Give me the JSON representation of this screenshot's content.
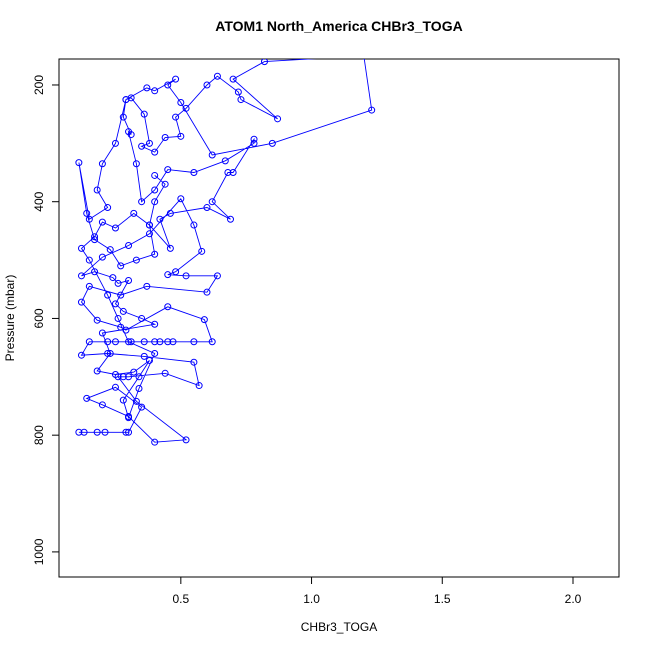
{
  "chart_data": {
    "type": "line",
    "title": "ATOM1 North_America CHBr3_TOGA",
    "x_label": "CHBr3_TOGA",
    "y_label": "Pressure (mbar)",
    "color": "#0000ff",
    "markers": "open-circle",
    "xlim": [
      0.034,
      2.176
    ],
    "ylim": [
      1043,
      155.5
    ],
    "y_inverted": true,
    "xticks": [
      0.5,
      {
        "value": 1,
        "label": "1.0"
      },
      1.5,
      {
        "value": 2,
        "label": "2.0"
      }
    ],
    "yticks": [
      200,
      400,
      600,
      800,
      1000
    ],
    "x": [
      0.11,
      0.13,
      0.18,
      0.21,
      0.29,
      0.3,
      0.35,
      0.25,
      0.14,
      0.2,
      0.3,
      0.4,
      0.52,
      0.33,
      0.26,
      0.28,
      0.3,
      0.44,
      0.57,
      0.55,
      0.36,
      0.22,
      0.12,
      0.15,
      0.22,
      0.25,
      0.31,
      0.36,
      0.4,
      0.42,
      0.45,
      0.47,
      0.55,
      0.62,
      0.59,
      0.45,
      0.29,
      0.27,
      0.18,
      0.12,
      0.15,
      0.27,
      0.37,
      0.6,
      0.64,
      0.52,
      0.45,
      0.48,
      0.58,
      0.55,
      0.5,
      0.38,
      0.3,
      0.2,
      0.12,
      0.17,
      0.24,
      0.26,
      0.3,
      0.25,
      0.28,
      0.35,
      0.4,
      0.2,
      0.23,
      0.18,
      0.25,
      0.32,
      0.38,
      0.34,
      0.28,
      0.3,
      0.34,
      0.4,
      0.3,
      0.26,
      0.22,
      0.15,
      0.12,
      0.17,
      0.2,
      0.25,
      0.32,
      0.38,
      0.46,
      0.42,
      0.46,
      0.6,
      0.69,
      0.62,
      0.68,
      0.7,
      0.78,
      0.78,
      0.67,
      0.55,
      0.45,
      0.4,
      0.35,
      0.33,
      0.3,
      0.31,
      0.28,
      0.29,
      0.31,
      0.36,
      0.38,
      0.35,
      0.4,
      0.44,
      0.5,
      0.48,
      0.52,
      0.6,
      0.64,
      0.72,
      0.73,
      0.87,
      0.7,
      0.82,
      1.2,
      1.23,
      0.85,
      0.62,
      0.5,
      0.45,
      0.48,
      0.4,
      0.37,
      0.29,
      0.25,
      0.2,
      0.18,
      0.22,
      0.15,
      0.11,
      0.14,
      0.17,
      0.23,
      0.27,
      0.33,
      0.4,
      0.38,
      0.4,
      0.44,
      0.4
    ],
    "values": [
      795,
      795,
      795,
      795,
      795,
      795,
      752,
      718,
      737,
      748,
      768,
      812,
      808,
      742,
      700,
      700,
      700,
      694,
      715,
      675,
      665,
      660,
      663,
      640,
      640,
      640,
      640,
      640,
      640,
      640,
      640,
      640,
      640,
      640,
      602,
      580,
      620,
      615,
      603,
      572,
      545,
      560,
      545,
      555,
      527,
      527,
      525,
      520,
      485,
      440,
      395,
      455,
      475,
      495,
      527,
      520,
      530,
      540,
      535,
      575,
      588,
      600,
      610,
      625,
      660,
      690,
      696,
      692,
      672,
      700,
      740,
      770,
      720,
      660,
      640,
      600,
      560,
      500,
      480,
      460,
      435,
      445,
      420,
      440,
      480,
      430,
      420,
      410,
      430,
      400,
      350,
      350,
      293,
      300,
      330,
      350,
      345,
      380,
      400,
      335,
      280,
      285,
      255,
      225,
      222,
      250,
      300,
      305,
      315,
      290,
      288,
      255,
      240,
      200,
      185,
      212,
      225,
      258,
      190,
      160,
      150,
      243,
      300,
      320,
      230,
      200,
      190,
      210,
      205,
      225,
      300,
      335,
      380,
      410,
      430,
      333,
      420,
      465,
      482,
      510,
      500,
      490,
      440,
      400,
      370,
      355
    ]
  }
}
